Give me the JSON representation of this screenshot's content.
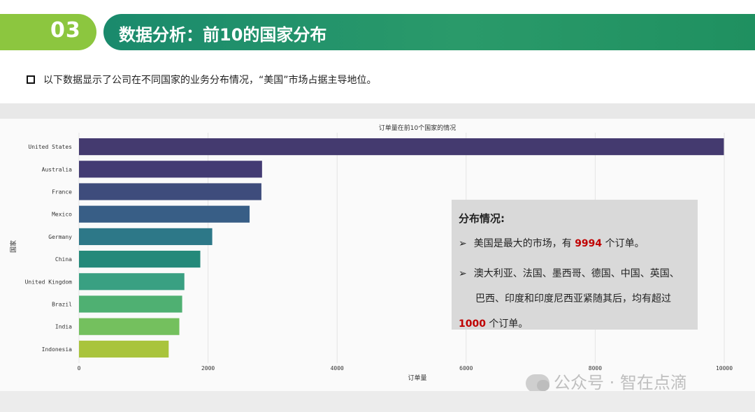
{
  "section": {
    "number": "03",
    "title": "数据分析：前10的国家分布"
  },
  "intro": "以下数据显示了公司在不同国家的业务分布情况，“美国”市场占据主导地位。",
  "annotation": {
    "heading": "分布情况:",
    "bullet1_pre": "美国是最大的市场，有 ",
    "bullet1_num": "9994",
    "bullet1_post": " 个订单。",
    "bullet2_line1": "澳大利亚、法国、墨西哥、德国、中国、英国、",
    "bullet2_line2": "巴西、印度和印度尼西亚紧随其后，均有超过",
    "bullet2_num": "1000",
    "bullet2_post": " 个订单。",
    "arrow": "➢"
  },
  "watermark": "公众号 · 智在点滴",
  "chart_data": {
    "type": "bar",
    "orientation": "horizontal",
    "title": "订单量在前10个国家的情况",
    "xlabel": "订单量",
    "ylabel": "国家",
    "xlim": [
      0,
      10000
    ],
    "xticks": [
      0,
      2000,
      4000,
      6000,
      8000,
      10000
    ],
    "categories": [
      "United States",
      "Australia",
      "France",
      "Mexico",
      "Germany",
      "China",
      "United Kingdom",
      "Brazil",
      "India",
      "Indonesia"
    ],
    "values": [
      9994,
      2837,
      2827,
      2644,
      2065,
      1880,
      1633,
      1599,
      1555,
      1390
    ],
    "colors": [
      "#443a6f",
      "#433b73",
      "#3e4c7c",
      "#385e86",
      "#2d7888",
      "#24897a",
      "#39a082",
      "#4fb072",
      "#74c05e",
      "#a9c43c"
    ],
    "grid": true
  }
}
